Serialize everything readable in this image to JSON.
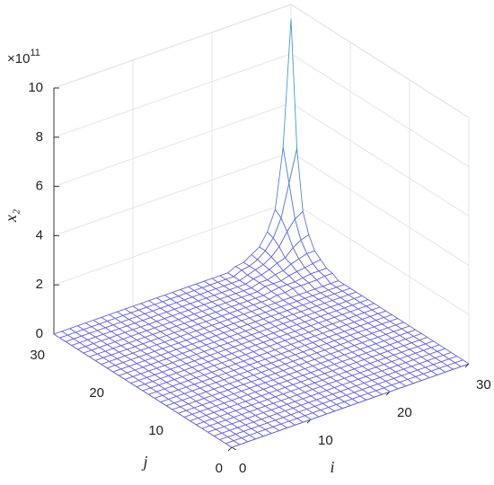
{
  "chart_data": {
    "type": "mesh",
    "xlabel": "i",
    "ylabel": "j",
    "zlabel": "x₂",
    "exponent": {
      "base": "×10",
      "power": "11"
    },
    "x": [
      0,
      1,
      2,
      3,
      4,
      5,
      6,
      7,
      8,
      9,
      10,
      11,
      12,
      13,
      14,
      15,
      16,
      17,
      18,
      19,
      20,
      21,
      22,
      23,
      24,
      25,
      26,
      27,
      28,
      29,
      30
    ],
    "y": [
      0,
      1,
      2,
      3,
      4,
      5,
      6,
      7,
      8,
      9,
      10,
      11,
      12,
      13,
      14,
      15,
      16,
      17,
      18,
      19,
      20,
      21,
      22,
      23,
      24,
      25,
      26,
      27,
      28,
      29,
      30
    ],
    "z": [
      [
        0,
        0,
        0,
        0,
        0,
        0,
        0,
        0,
        0,
        0,
        0,
        0,
        0,
        0,
        0,
        0,
        0,
        0,
        0,
        0,
        0,
        0,
        0,
        0,
        0,
        0,
        0,
        0,
        0,
        0,
        0
      ],
      [
        0,
        0,
        0,
        0,
        0,
        0,
        0,
        0,
        0,
        0,
        0,
        0,
        0,
        0,
        0,
        0,
        0,
        0,
        0,
        0,
        0,
        0,
        0,
        0,
        0,
        0,
        0,
        0,
        0,
        0,
        0
      ],
      [
        0,
        0,
        0,
        0,
        0,
        0,
        0,
        0,
        0,
        0,
        0,
        0,
        0,
        0,
        0,
        0,
        0,
        0,
        0,
        0,
        0,
        0,
        0,
        0,
        0,
        0,
        0,
        0,
        0,
        0,
        0
      ],
      [
        0,
        0,
        0,
        0,
        0,
        0,
        0,
        0,
        0,
        0,
        0,
        0,
        0,
        0,
        0,
        0,
        0,
        0,
        0,
        0,
        0,
        0,
        0,
        0,
        0,
        0,
        0,
        0,
        0,
        0,
        0
      ],
      [
        0,
        0,
        0,
        0,
        0,
        0,
        0,
        0,
        0,
        0,
        0,
        0,
        0,
        0,
        0,
        0,
        0,
        0,
        0,
        0,
        0,
        0,
        0,
        0,
        0,
        0,
        0,
        0,
        0,
        0,
        0
      ],
      [
        0,
        0,
        0,
        0,
        0,
        0,
        0,
        0,
        0,
        0,
        0,
        0,
        0,
        0,
        0,
        0,
        0,
        0,
        0,
        0,
        0,
        0,
        0,
        0,
        0,
        0,
        0,
        0,
        0,
        0,
        0
      ],
      [
        0,
        0,
        0,
        0,
        0,
        0,
        0,
        0,
        0,
        0,
        0,
        0,
        0,
        0,
        0,
        0,
        0,
        0,
        0,
        0,
        0,
        0,
        0,
        0,
        0,
        0,
        0,
        0,
        0,
        0,
        0
      ],
      [
        0,
        0,
        0,
        0,
        0,
        0,
        0,
        0,
        0,
        0,
        0,
        0,
        0,
        0,
        0,
        0,
        0,
        0,
        0,
        0,
        0,
        0,
        0,
        0,
        0,
        0,
        0,
        0,
        0,
        0,
        0
      ],
      [
        0,
        0,
        0,
        0,
        0,
        0,
        0,
        0,
        0,
        0,
        0,
        0,
        0,
        0,
        0,
        0,
        0,
        0,
        0,
        0,
        0,
        0,
        0,
        0,
        0,
        0,
        0,
        0,
        0,
        0,
        0
      ],
      [
        0,
        0,
        0,
        0,
        0,
        0,
        0,
        0,
        0,
        0,
        0,
        0,
        0,
        0,
        0,
        0,
        0,
        0,
        0,
        0,
        0,
        0,
        0,
        0,
        0,
        0,
        0,
        0,
        0,
        0,
        0
      ],
      [
        0,
        0,
        0,
        0,
        0,
        0,
        0,
        0,
        0,
        0,
        0,
        0,
        0,
        0,
        0,
        0,
        0,
        0,
        0,
        0,
        0,
        0,
        0,
        0,
        0,
        0,
        0,
        0,
        0,
        0,
        0
      ],
      [
        0,
        0,
        0,
        0,
        0,
        0,
        0,
        0,
        0,
        0,
        0,
        0,
        0,
        0,
        0,
        0,
        0,
        0,
        0,
        0,
        0,
        0,
        0,
        0,
        0,
        0,
        0,
        0,
        0,
        0,
        0
      ],
      [
        0,
        0,
        0,
        0,
        0,
        0,
        0,
        0,
        0,
        0,
        0,
        0,
        0,
        0,
        0,
        0,
        0,
        0,
        0,
        0,
        0,
        0,
        0,
        0,
        0,
        0,
        0,
        0,
        0,
        0,
        0
      ],
      [
        0,
        0,
        0,
        0,
        0,
        0,
        0,
        0,
        0,
        0,
        0,
        0,
        0,
        0,
        0,
        0,
        0,
        0,
        0,
        0,
        0,
        0,
        0,
        0,
        0,
        0,
        0,
        0,
        0,
        0,
        0
      ],
      [
        0,
        0,
        0,
        0,
        0,
        0,
        0,
        0,
        0,
        0,
        0,
        0,
        0,
        0,
        0,
        0,
        0,
        0,
        0,
        0,
        0,
        0,
        0,
        0,
        0,
        0,
        0,
        0,
        0,
        0,
        0
      ],
      [
        0,
        0,
        0,
        0,
        0,
        0,
        0,
        0,
        0,
        0,
        0,
        0,
        0,
        0,
        0,
        0,
        0,
        0,
        0,
        0,
        0,
        0,
        0,
        0,
        0,
        0,
        0,
        0,
        0,
        0,
        0
      ],
      [
        0,
        0,
        0,
        0,
        0,
        0,
        0,
        0,
        0,
        0,
        0,
        0,
        0,
        0,
        0,
        0,
        0,
        0,
        0,
        0,
        0,
        0,
        0,
        0,
        0,
        0,
        0,
        0,
        0,
        0,
        0
      ],
      [
        0,
        0,
        0,
        0,
        0,
        0,
        0,
        0,
        0,
        0,
        0,
        0,
        0,
        0,
        0,
        0,
        0,
        0,
        0,
        0,
        0,
        0,
        0,
        0,
        0,
        0,
        0,
        0,
        0,
        0,
        0
      ],
      [
        0,
        0,
        0,
        0,
        0,
        0,
        0,
        0,
        0,
        0,
        0,
        0,
        0,
        0,
        0,
        0,
        0,
        0,
        0,
        0,
        0,
        0,
        0,
        0,
        0,
        0,
        0,
        0,
        0,
        0,
        0
      ],
      [
        0,
        0,
        0,
        0,
        0,
        0,
        0,
        0,
        0,
        0,
        0,
        0,
        0,
        0,
        0,
        0,
        0,
        0,
        0,
        0,
        0,
        0,
        0,
        0,
        0,
        0,
        0,
        0,
        0,
        0,
        0
      ],
      [
        0,
        0,
        0,
        0,
        0,
        0,
        0,
        0,
        0,
        0,
        0,
        0,
        0,
        0,
        0,
        0,
        0,
        0,
        0,
        0,
        0,
        0,
        0,
        0,
        0,
        0,
        0,
        0,
        0,
        0,
        0
      ],
      [
        0,
        0,
        0,
        0,
        0,
        0,
        0,
        0,
        0,
        0,
        0,
        0,
        0,
        0,
        0,
        0,
        0,
        0,
        0,
        0,
        0,
        0,
        0,
        0,
        0,
        0,
        0,
        0,
        0,
        0,
        0
      ],
      [
        0,
        0,
        0,
        0,
        0,
        0,
        0,
        0,
        0,
        0,
        0,
        0,
        0,
        0,
        0,
        0,
        0,
        0,
        0,
        0,
        0,
        0,
        0,
        0,
        0,
        0,
        0,
        0,
        0,
        0,
        0
      ],
      [
        0,
        0,
        0,
        0,
        0,
        0,
        0,
        0,
        0,
        0,
        0,
        0,
        0,
        0,
        0,
        0,
        0,
        0,
        0,
        0,
        0,
        0,
        0,
        0.05,
        0.05,
        0.1,
        0.1,
        0.1,
        0.1,
        0.15,
        0.15
      ],
      [
        0,
        0,
        0,
        0,
        0,
        0,
        0,
        0,
        0,
        0,
        0,
        0,
        0,
        0,
        0,
        0,
        0,
        0,
        0,
        0,
        0,
        0,
        0,
        0.05,
        0.1,
        0.1,
        0.1,
        0.15,
        0.2,
        0.2,
        0.2
      ],
      [
        0,
        0,
        0,
        0,
        0,
        0,
        0,
        0,
        0,
        0,
        0,
        0,
        0,
        0,
        0,
        0,
        0,
        0,
        0,
        0,
        0,
        0,
        0,
        0.1,
        0.1,
        0.1,
        0.2,
        0.25,
        0.3,
        0.35,
        0.4
      ],
      [
        0,
        0,
        0,
        0,
        0,
        0,
        0,
        0,
        0,
        0,
        0,
        0,
        0,
        0,
        0,
        0,
        0,
        0,
        0,
        0,
        0,
        0,
        0,
        0.1,
        0.1,
        0.2,
        0.25,
        0.4,
        0.5,
        0.6,
        0.6
      ],
      [
        0,
        0,
        0,
        0,
        0,
        0,
        0,
        0,
        0,
        0,
        0,
        0,
        0,
        0,
        0,
        0,
        0,
        0,
        0,
        0,
        0,
        0,
        0,
        0.1,
        0.15,
        0.25,
        0.4,
        0.5,
        0.8,
        1.0,
        1.1
      ],
      [
        0,
        0,
        0,
        0,
        0,
        0,
        0,
        0,
        0,
        0,
        0,
        0,
        0,
        0,
        0,
        0,
        0,
        0,
        0,
        0,
        0,
        0,
        0,
        0.1,
        0.2,
        0.3,
        0.5,
        0.8,
        1.3,
        1.7,
        1.9
      ],
      [
        0,
        0,
        0,
        0,
        0,
        0,
        0,
        0,
        0,
        0,
        0,
        0,
        0,
        0,
        0,
        0,
        0,
        0,
        0,
        0,
        0,
        0,
        0,
        0.15,
        0.2,
        0.35,
        0.6,
        1.0,
        1.7,
        3.0,
        4.3
      ],
      [
        0,
        0,
        0,
        0,
        0,
        0,
        0,
        0,
        0,
        0,
        0,
        0,
        0,
        0,
        0,
        0,
        0,
        0,
        0,
        0,
        0,
        0,
        0,
        0.15,
        0.2,
        0.4,
        0.6,
        1.1,
        1.9,
        4.3,
        9.4
      ]
    ],
    "xlim": [
      0,
      30
    ],
    "ylim": [
      0,
      30
    ],
    "zlim": [
      0,
      10
    ],
    "xticks": [
      0,
      10,
      20,
      30
    ],
    "yticks": [
      0,
      10,
      20,
      30
    ],
    "zticks": [
      0,
      2,
      4,
      6,
      8,
      10
    ],
    "grid": true,
    "colormap": [
      "#6a68dc",
      "#22c6cc"
    ]
  }
}
